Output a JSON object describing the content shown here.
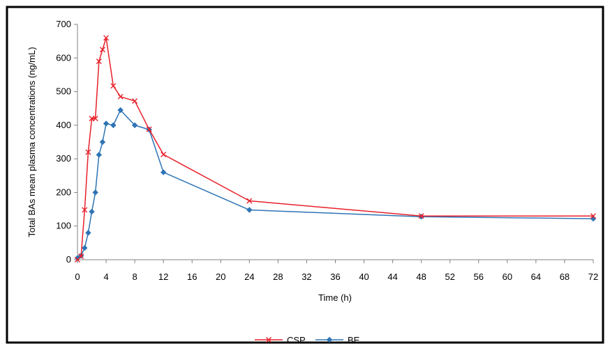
{
  "chart_data": {
    "type": "line",
    "title": "",
    "xlabel": "Time (h)",
    "ylabel": "Total BAs mean plasma concentrations (ng/mL)",
    "xlim": [
      0,
      72
    ],
    "ylim": [
      0,
      700
    ],
    "xticks": [
      0,
      4,
      8,
      12,
      16,
      20,
      24,
      28,
      32,
      36,
      40,
      44,
      48,
      52,
      56,
      60,
      64,
      68,
      72
    ],
    "yticks": [
      0,
      100,
      200,
      300,
      400,
      500,
      600,
      700
    ],
    "grid": false,
    "legend_position": "bottom",
    "series": [
      {
        "name": "CSP",
        "color": "#e8202a",
        "marker": "x-mark",
        "points": [
          {
            "x": 0,
            "y": 0
          },
          {
            "x": 0.5,
            "y": 10
          },
          {
            "x": 1,
            "y": 148
          },
          {
            "x": 1.5,
            "y": 320
          },
          {
            "x": 2,
            "y": 420
          },
          {
            "x": 2.5,
            "y": 420
          },
          {
            "x": 3,
            "y": 590
          },
          {
            "x": 3.5,
            "y": 625
          },
          {
            "x": 4,
            "y": 660
          },
          {
            "x": 5,
            "y": 517
          },
          {
            "x": 6,
            "y": 485
          },
          {
            "x": 8,
            "y": 472
          },
          {
            "x": 10,
            "y": 388
          },
          {
            "x": 12,
            "y": 313
          },
          {
            "x": 24,
            "y": 175
          },
          {
            "x": 48,
            "y": 130
          },
          {
            "x": 72,
            "y": 130
          }
        ]
      },
      {
        "name": "BE",
        "color": "#2e74b5",
        "marker": "diamond",
        "points": [
          {
            "x": 0,
            "y": 5
          },
          {
            "x": 0.5,
            "y": 12
          },
          {
            "x": 1,
            "y": 35
          },
          {
            "x": 1.5,
            "y": 80
          },
          {
            "x": 2,
            "y": 143
          },
          {
            "x": 2.5,
            "y": 200
          },
          {
            "x": 3,
            "y": 312
          },
          {
            "x": 3.5,
            "y": 350
          },
          {
            "x": 4,
            "y": 405
          },
          {
            "x": 5,
            "y": 400
          },
          {
            "x": 6,
            "y": 445
          },
          {
            "x": 8,
            "y": 400
          },
          {
            "x": 10,
            "y": 387
          },
          {
            "x": 12,
            "y": 260
          },
          {
            "x": 24,
            "y": 148
          },
          {
            "x": 48,
            "y": 128
          },
          {
            "x": 72,
            "y": 122
          }
        ]
      }
    ]
  }
}
